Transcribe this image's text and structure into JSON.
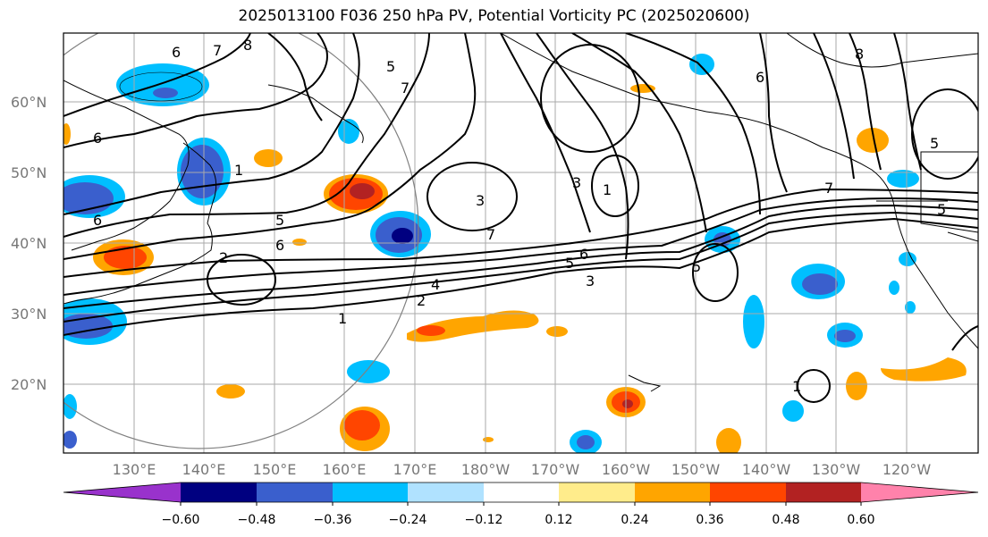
{
  "title": "2025013100 F036 250 hPa PV, Potential Vorticity PC (2025020600)",
  "map": {
    "lat_labels": [
      "60°N",
      "50°N",
      "40°N",
      "30°N",
      "20°N"
    ],
    "lon_labels": [
      "130°E",
      "140°E",
      "150°E",
      "160°E",
      "170°E",
      "180°W",
      "170°W",
      "160°W",
      "150°W",
      "140°W",
      "130°W",
      "120°W"
    ],
    "contour_labels": [
      "6",
      "7",
      "8",
      "5",
      "7",
      "6",
      "1",
      "5",
      "6",
      "3",
      "1",
      "3",
      "7",
      "5",
      "6",
      "4",
      "3",
      "2",
      "1",
      "2",
      "6",
      "8",
      "7",
      "5",
      "1",
      "5",
      "6",
      "5"
    ]
  },
  "colorbar": {
    "ticks": [
      "−0.60",
      "−0.48",
      "−0.36",
      "−0.24",
      "−0.12",
      "0.12",
      "0.24",
      "0.36",
      "0.48",
      "0.60"
    ],
    "colors": [
      "#9932cc",
      "#000080",
      "#3a5fcd",
      "#00bfff",
      "#b0e2ff",
      "#ffffff",
      "#ffec8b",
      "#ffa500",
      "#ff4500",
      "#b22222",
      "#ff82ab"
    ]
  }
}
